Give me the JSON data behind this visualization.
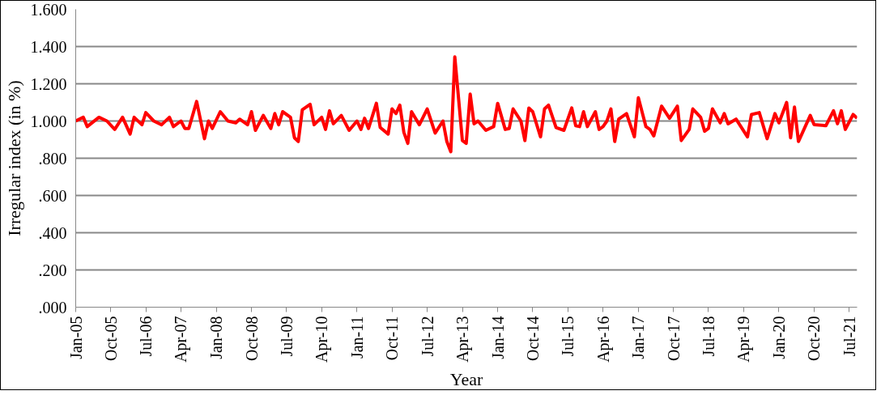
{
  "chart_data": {
    "type": "line",
    "xlabel": "Year",
    "ylabel": "Irregular index (in %)",
    "x": [
      "2005-01",
      "2005-03",
      "2005-04",
      "2005-07",
      "2005-09",
      "2005-11",
      "2006-01",
      "2006-03",
      "2006-04",
      "2006-06",
      "2006-07",
      "2006-09",
      "2006-11",
      "2007-01",
      "2007-02",
      "2007-04",
      "2007-05",
      "2007-06",
      "2007-08",
      "2007-10",
      "2007-11",
      "2007-12",
      "2008-02",
      "2008-04",
      "2008-06",
      "2008-07",
      "2008-09",
      "2008-10",
      "2008-11",
      "2009-01",
      "2009-03",
      "2009-04",
      "2009-05",
      "2009-06",
      "2009-08",
      "2009-09",
      "2009-10",
      "2009-11",
      "2010-01",
      "2010-02",
      "2010-04",
      "2010-05",
      "2010-06",
      "2010-07",
      "2010-09",
      "2010-11",
      "2011-01",
      "2011-02",
      "2011-03",
      "2011-04",
      "2011-06",
      "2011-07",
      "2011-09",
      "2011-10",
      "2011-11",
      "2011-12",
      "2012-01",
      "2012-02",
      "2012-03",
      "2012-05",
      "2012-07",
      "2012-09",
      "2012-11",
      "2012-12",
      "2013-01",
      "2013-02",
      "2013-04",
      "2013-05",
      "2013-06",
      "2013-07",
      "2013-08",
      "2013-10",
      "2013-12",
      "2014-01",
      "2014-03",
      "2014-04",
      "2014-05",
      "2014-07",
      "2014-08",
      "2014-09",
      "2014-10",
      "2014-12",
      "2015-01",
      "2015-02",
      "2015-04",
      "2015-06",
      "2015-08",
      "2015-09",
      "2015-10",
      "2015-11",
      "2015-12",
      "2016-02",
      "2016-03",
      "2016-04",
      "2016-05",
      "2016-06",
      "2016-07",
      "2016-08",
      "2016-10",
      "2016-12",
      "2017-01",
      "2017-03",
      "2017-04",
      "2017-05",
      "2017-07",
      "2017-09",
      "2017-11",
      "2017-12",
      "2018-02",
      "2018-03",
      "2018-05",
      "2018-06",
      "2018-07",
      "2018-08",
      "2018-10",
      "2018-11",
      "2018-12",
      "2019-02",
      "2019-05",
      "2019-06",
      "2019-08",
      "2019-10",
      "2019-12",
      "2020-01",
      "2020-03",
      "2020-04",
      "2020-05",
      "2020-06",
      "2020-09",
      "2020-10",
      "2021-01",
      "2021-03",
      "2021-04",
      "2021-05",
      "2021-06",
      "2021-08",
      "2021-09"
    ],
    "series": [
      {
        "color": "#ff0000",
        "values": [
          1.0,
          1.02,
          0.97,
          1.02,
          1.0,
          0.955,
          1.02,
          0.93,
          1.02,
          0.98,
          1.045,
          1.0,
          0.98,
          1.02,
          0.97,
          1.0,
          0.96,
          0.96,
          1.105,
          0.905,
          1.0,
          0.96,
          1.05,
          1.0,
          0.99,
          1.01,
          0.98,
          1.05,
          0.95,
          1.03,
          0.96,
          1.04,
          0.98,
          1.05,
          1.02,
          0.91,
          0.89,
          1.06,
          1.09,
          0.98,
          1.02,
          0.955,
          1.055,
          0.985,
          1.03,
          0.95,
          1.0,
          0.955,
          1.015,
          0.96,
          1.095,
          0.965,
          0.93,
          1.065,
          1.04,
          1.085,
          0.94,
          0.88,
          1.05,
          0.98,
          1.065,
          0.935,
          1.0,
          0.89,
          0.835,
          1.345,
          0.895,
          0.88,
          1.145,
          0.985,
          1.0,
          0.95,
          0.97,
          1.095,
          0.955,
          0.96,
          1.065,
          1.0,
          0.895,
          1.07,
          1.05,
          0.915,
          1.065,
          1.085,
          0.965,
          0.95,
          1.07,
          0.975,
          0.97,
          1.05,
          0.97,
          1.05,
          0.955,
          0.97,
          1.0,
          1.065,
          0.89,
          1.01,
          1.04,
          0.915,
          1.125,
          0.97,
          0.955,
          0.92,
          1.08,
          1.015,
          1.08,
          0.895,
          0.955,
          1.065,
          1.02,
          0.945,
          0.96,
          1.065,
          0.99,
          1.04,
          0.985,
          1.01,
          0.915,
          1.035,
          1.045,
          0.905,
          1.04,
          0.99,
          1.1,
          0.91,
          1.075,
          0.89,
          1.03,
          0.98,
          0.975,
          1.055,
          0.985,
          1.055,
          0.955,
          1.035,
          1.015
        ]
      }
    ],
    "xlim": [
      "2005-01",
      "2021-09"
    ],
    "xticks": [
      {
        "value": "2005-01",
        "label": "Jan-05"
      },
      {
        "value": "2005-10",
        "label": "Oct-05"
      },
      {
        "value": "2006-07",
        "label": "Jul-06"
      },
      {
        "value": "2007-04",
        "label": "Apr-07"
      },
      {
        "value": "2008-01",
        "label": "Jan-08"
      },
      {
        "value": "2008-10",
        "label": "Oct-08"
      },
      {
        "value": "2009-07",
        "label": "Jul-09"
      },
      {
        "value": "2010-04",
        "label": "Apr-10"
      },
      {
        "value": "2011-01",
        "label": "Jan-11"
      },
      {
        "value": "2011-10",
        "label": "Oct-11"
      },
      {
        "value": "2012-07",
        "label": "Jul-12"
      },
      {
        "value": "2013-04",
        "label": "Apr-13"
      },
      {
        "value": "2014-01",
        "label": "Jan-14"
      },
      {
        "value": "2014-10",
        "label": "Oct-14"
      },
      {
        "value": "2015-07",
        "label": "Jul-15"
      },
      {
        "value": "2016-04",
        "label": "Apr-16"
      },
      {
        "value": "2017-01",
        "label": "Jan-17"
      },
      {
        "value": "2017-10",
        "label": "Oct-17"
      },
      {
        "value": "2018-07",
        "label": "Jul-18"
      },
      {
        "value": "2019-04",
        "label": "Apr-19"
      },
      {
        "value": "2020-01",
        "label": "Jan-20"
      },
      {
        "value": "2020-10",
        "label": "Oct-20"
      },
      {
        "value": "2021-07",
        "label": "Jul-21"
      }
    ],
    "ylim": [
      0,
      1.6
    ],
    "yticks": [
      {
        "value": 0,
        "label": ".000"
      },
      {
        "value": 0.2,
        "label": ".200"
      },
      {
        "value": 0.4,
        "label": ".400"
      },
      {
        "value": 0.6,
        "label": ".600"
      },
      {
        "value": 0.8,
        "label": ".800"
      },
      {
        "value": 1.0,
        "label": "1.000"
      },
      {
        "value": 1.2,
        "label": "1.200"
      },
      {
        "value": 1.4,
        "label": "1.400"
      },
      {
        "value": 1.6,
        "label": "1.600"
      }
    ],
    "grid": "y",
    "marker": "none",
    "line_style": "solid"
  }
}
